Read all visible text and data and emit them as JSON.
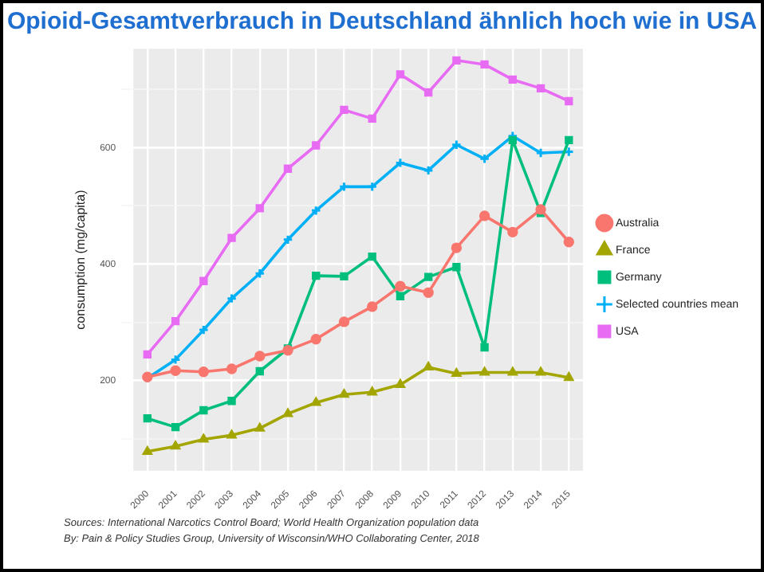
{
  "chart_data": {
    "type": "line",
    "title": "Opioid-Gesamtverbrauch in Deutschland ähnlich hoch wie in USA",
    "ylabel": "consumption (mg/capita)",
    "categories": [
      "2000",
      "2001",
      "2002",
      "2003",
      "2004",
      "2005",
      "2006",
      "2007",
      "2008",
      "2009",
      "2010",
      "2011",
      "2012",
      "2013",
      "2014",
      "2015"
    ],
    "series": [
      {
        "name": "Australia",
        "color": "#f8766d",
        "marker": "circle",
        "values": [
          206,
          217,
          215,
          220,
          242,
          252,
          271,
          301,
          327,
          362,
          351,
          428,
          483,
          455,
          494,
          438
        ]
      },
      {
        "name": "France",
        "color": "#a3a500",
        "marker": "triangle",
        "values": [
          78,
          87,
          99,
          106,
          118,
          143,
          162,
          176,
          180,
          193,
          223,
          212,
          214,
          214,
          214,
          205
        ]
      },
      {
        "name": "Germany",
        "color": "#00bf7d",
        "marker": "square",
        "values": [
          135,
          120,
          149,
          165,
          216,
          255,
          380,
          379,
          413,
          345,
          378,
          395,
          257,
          613,
          488,
          613
        ]
      },
      {
        "name": "Selected countries mean",
        "color": "#00b0f6",
        "marker": "cross",
        "values": [
          204,
          236,
          287,
          341,
          384,
          442,
          492,
          533,
          533,
          574,
          561,
          605,
          581,
          620,
          591,
          593
        ]
      },
      {
        "name": "USA",
        "color": "#e76bf3",
        "marker": "square",
        "values": [
          245,
          302,
          371,
          445,
          496,
          564,
          604,
          665,
          650,
          726,
          695,
          750,
          743,
          717,
          702,
          680
        ]
      }
    ],
    "ylim": [
      45,
      770
    ],
    "yticks": [
      {
        "value": 100,
        "label": null
      },
      200,
      {
        "value": 300,
        "label": null
      },
      400,
      {
        "value": 500,
        "label": null
      },
      600,
      {
        "value": 700,
        "label": null
      }
    ],
    "grid": true,
    "legend": "right",
    "line_style": "solid",
    "annotations": [
      "Sources: International Narcotics Control Board; World Health Organization population data",
      "By: Pain & Policy Studies Group, University of Wisconsin/WHO Collaborating Center, 2018"
    ]
  }
}
